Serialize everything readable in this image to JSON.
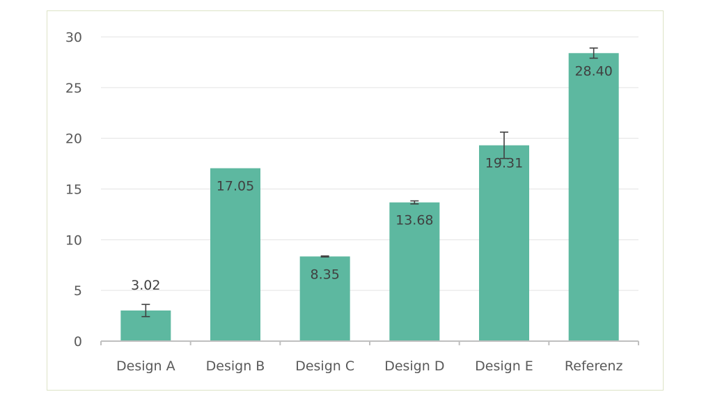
{
  "chart_data": {
    "type": "bar",
    "title": "",
    "xlabel": "",
    "ylabel": "",
    "categories": [
      "Design A",
      "Design B",
      "Design C",
      "Design D",
      "Design E",
      "Referenz"
    ],
    "values": [
      3.02,
      17.05,
      8.35,
      13.68,
      19.31,
      28.4
    ],
    "value_labels": [
      "3.02",
      "17.05",
      "8.35",
      "13.68",
      "19.31",
      "28.40"
    ],
    "error_bars": [
      0.6,
      0,
      0.05,
      0.15,
      1.3,
      0.5
    ],
    "ylim": [
      0,
      30
    ],
    "yticks": [
      0,
      5,
      10,
      15,
      20,
      25,
      30
    ],
    "ytick_labels": [
      "0",
      "5",
      "10",
      "15",
      "20",
      "25",
      "30"
    ],
    "grid": true,
    "legend": "none",
    "colors": {
      "bar": "#5db8a0",
      "grid": "#e3e3e3",
      "axis": "#bfbfbf",
      "error": "#404040",
      "frame": "#dde3c6"
    }
  }
}
